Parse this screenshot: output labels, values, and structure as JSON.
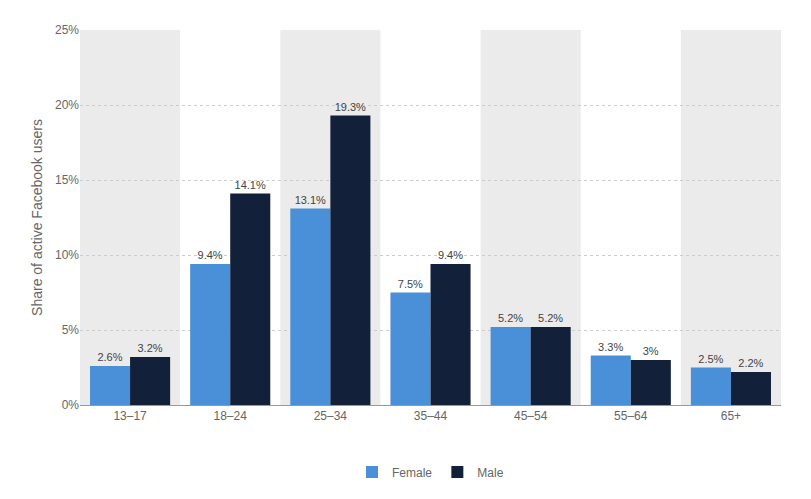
{
  "chart_data": {
    "type": "bar",
    "categories": [
      "13–17",
      "18–24",
      "25–34",
      "35–44",
      "45–54",
      "55–64",
      "65+"
    ],
    "series": [
      {
        "name": "Female",
        "color": "#4a90d9",
        "values": [
          2.6,
          9.4,
          13.1,
          7.5,
          5.2,
          3.3,
          2.5
        ],
        "value_labels": [
          "2.6%",
          "9.4%",
          "13.1%",
          "7.5%",
          "5.2%",
          "3.3%",
          "2.5%"
        ]
      },
      {
        "name": "Male",
        "color": "#12203a",
        "values": [
          3.2,
          14.1,
          19.3,
          9.4,
          5.2,
          3.0,
          2.2
        ],
        "value_labels": [
          "3.2%",
          "14.1%",
          "19.3%",
          "9.4%",
          "5.2%",
          "3%",
          "2.2%"
        ]
      }
    ],
    "ylabel": "Share of active Facebook users",
    "ylim": [
      0,
      25
    ],
    "yticks": [
      {
        "value": 0,
        "label": "0%"
      },
      {
        "value": 5,
        "label": "5%"
      },
      {
        "value": 10,
        "label": "10%"
      },
      {
        "value": 15,
        "label": "15%"
      },
      {
        "value": 20,
        "label": "20%"
      },
      {
        "value": 25,
        "label": "25%"
      }
    ],
    "grid": true,
    "legend": "bottom",
    "data_labels": true
  }
}
